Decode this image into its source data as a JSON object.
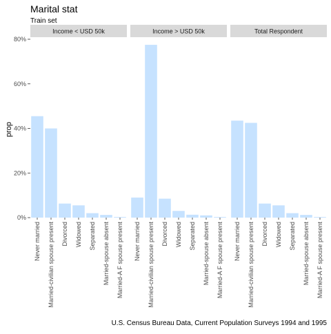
{
  "chart_data": {
    "type": "bar",
    "title": "Marital stat",
    "subtitle": "Train set",
    "caption": "U.S. Census Bureau Data, Current Population Surveys 1994 and 1995",
    "ylabel": "prop",
    "xlabel": "",
    "ylim": [
      0,
      0.8
    ],
    "yticks": [
      0,
      0.2,
      0.4,
      0.6,
      0.8
    ],
    "ytick_labels": [
      "0%",
      "20%",
      "40%",
      "60%",
      "80%"
    ],
    "grid": false,
    "legend": "none",
    "bar_color": "#c6e2ff",
    "strip_color": "#d9d9d9",
    "categories": [
      "Never married",
      "Married-civilian spouse present",
      "Divorced",
      "Widowed",
      "Separated",
      "Married-spouse absent",
      "Married-A F spouse present"
    ],
    "panels": [
      {
        "name": "Income < USD 50k",
        "values": [
          0.455,
          0.4,
          0.063,
          0.055,
          0.02,
          0.012,
          0.003
        ]
      },
      {
        "name": "Income > USD 50k",
        "values": [
          0.09,
          0.775,
          0.085,
          0.03,
          0.013,
          0.01,
          0.003
        ]
      },
      {
        "name": "Total Respondent",
        "values": [
          0.435,
          0.425,
          0.063,
          0.055,
          0.02,
          0.012,
          0.003
        ]
      }
    ]
  }
}
